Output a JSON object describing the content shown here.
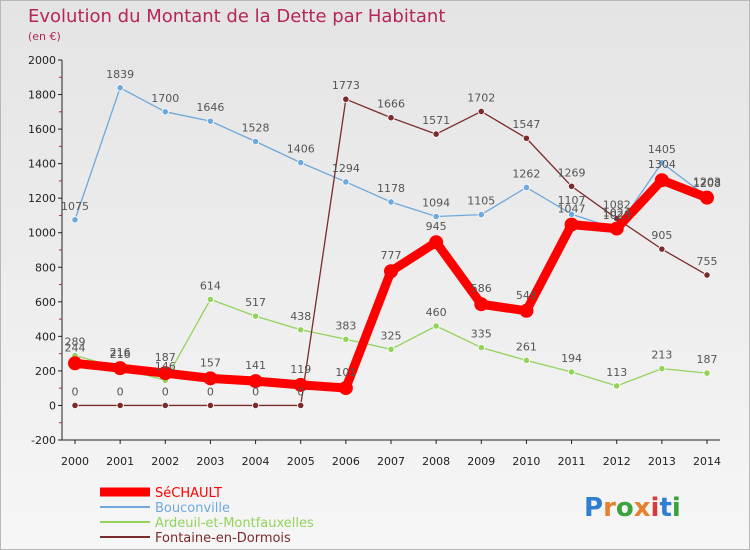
{
  "chart_data": {
    "type": "line",
    "title": "Evolution du Montant de la Dette par Habitant",
    "subtitle": "(en €)",
    "x": [
      "2000",
      "2001",
      "2002",
      "2003",
      "2004",
      "2005",
      "2006",
      "2007",
      "2008",
      "2009",
      "2010",
      "2011",
      "2012",
      "2013",
      "2014"
    ],
    "ylim": [
      -200,
      2000
    ],
    "yticks": [
      -200,
      0,
      200,
      400,
      600,
      800,
      1000,
      1200,
      1400,
      1600,
      1800,
      2000
    ],
    "grid": false,
    "legend_position": "bottom-left",
    "series": [
      {
        "name": "SéCHAULT",
        "color": "#ff0000",
        "values": [
          244,
          216,
          187,
          157,
          141,
          119,
          101,
          777,
          945,
          586,
          548,
          1047,
          1024,
          1304,
          1203
        ]
      },
      {
        "name": "Bouconville",
        "color": "#6fa8dc",
        "values": [
          1075,
          1839,
          1700,
          1646,
          1528,
          1406,
          1294,
          1178,
          1094,
          1105,
          1262,
          1107,
          1023,
          1405,
          1208
        ]
      },
      {
        "name": "Ardeuil-et-Montfauxelles",
        "color": "#93d35b",
        "values": [
          289,
          216,
          146,
          614,
          517,
          438,
          383,
          325,
          460,
          335,
          261,
          194,
          113,
          213,
          187
        ]
      },
      {
        "name": "Fontaine-en-Dormois",
        "color": "#7b2b2b",
        "values": [
          0,
          0,
          0,
          0,
          0,
          0,
          1773,
          1666,
          1571,
          1702,
          1547,
          1269,
          1082,
          905,
          755
        ]
      }
    ]
  },
  "branding": {
    "logo_text": "Proxiti"
  }
}
